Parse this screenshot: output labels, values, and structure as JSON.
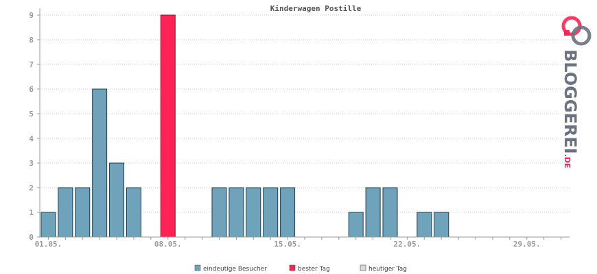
{
  "chart_data": {
    "type": "bar",
    "title": "Kinderwagen Postille",
    "xlabel": "",
    "ylabel": "",
    "ylim": [
      0,
      9
    ],
    "yticks": [
      0,
      1,
      2,
      3,
      4,
      5,
      6,
      7,
      8,
      9
    ],
    "grid": true,
    "days": 31,
    "x_tick_labels": [
      {
        "day": 1,
        "label": "01.05."
      },
      {
        "day": 8,
        "label": "08.05."
      },
      {
        "day": 15,
        "label": "15.05."
      },
      {
        "day": 22,
        "label": "22.05."
      },
      {
        "day": 29,
        "label": "29.05."
      }
    ],
    "series": [
      {
        "name": "eindeutige Besucher",
        "values": [
          1,
          2,
          2,
          6,
          3,
          2,
          0,
          9,
          0,
          0,
          2,
          2,
          2,
          2,
          2,
          0,
          0,
          0,
          1,
          2,
          2,
          0,
          1,
          1,
          0,
          0,
          0,
          0,
          0,
          0,
          0
        ]
      }
    ],
    "best_day_index": 7,
    "legend": {
      "placement": "bottom-center",
      "items": [
        {
          "label": "eindeutige Besucher",
          "color": "#6fa3bc"
        },
        {
          "label": "bester Tag",
          "color": "#ff2255"
        },
        {
          "label": "heutiger Tag",
          "color": "#d8d8d8"
        }
      ]
    }
  },
  "colors": {
    "bar": "#6fa3bc",
    "best": "#ff2255",
    "today": "#d8d8d8",
    "grid": "#c8c8c8",
    "axis": "#999999"
  },
  "logo": {
    "text_main": "BLOGGEREI",
    "text_suffix": ".DE"
  }
}
